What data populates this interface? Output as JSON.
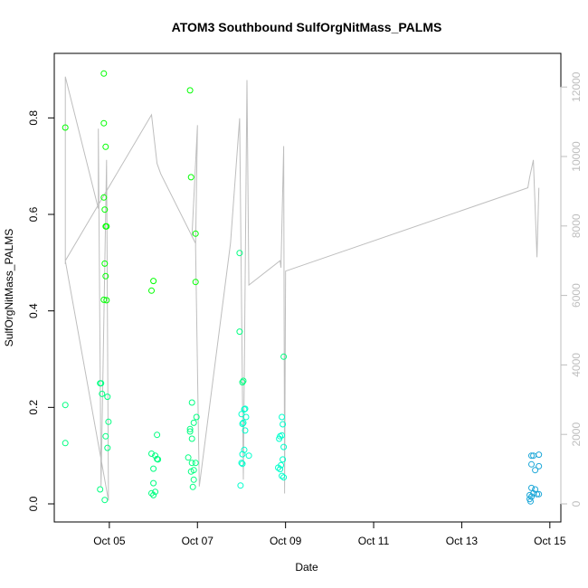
{
  "chart_data": {
    "type": "scatter",
    "title": "ATOM3 Southbound SulfOrgNitMass_PALMS",
    "xlabel": "Date",
    "ylabel": "SulfOrgNitMass_PALMS",
    "x_ticks": [
      "Oct 05",
      "Oct 07",
      "Oct 09",
      "Oct 11",
      "Oct 13",
      "Oct 15"
    ],
    "y_ticks": [
      "0.0",
      "0.2",
      "0.4",
      "0.6",
      "0.8"
    ],
    "y2_ticks": [
      "0",
      "2000",
      "4000",
      "6000",
      "8000",
      "10000",
      "12000"
    ],
    "xlim": [
      "2017-10-03T18:00",
      "2017-10-15T06:00"
    ],
    "ylim": [
      0,
      0.9
    ],
    "y2lim": [
      0,
      12500
    ],
    "colors": {
      "axis": "#000000",
      "altitude_line": "#bebebe",
      "altitude_axis_text": "#bebebe",
      "series_palette": [
        "#00ff00",
        "#00ff80",
        "#00ffcc",
        "#1ca7d8"
      ]
    },
    "series": [
      {
        "marker": "open-circle",
        "points": [
          [
            "2017-10-04T00:00",
            0.78
          ],
          [
            "2017-10-04T00:00",
            0.205
          ],
          [
            "2017-10-04T00:00",
            0.126
          ],
          [
            "2017-10-04T19:00",
            0.25
          ],
          [
            "2017-10-04T19:30",
            0.25
          ],
          [
            "2017-10-04T20:00",
            0.228
          ],
          [
            "2017-10-04T19:00",
            0.03
          ],
          [
            "2017-10-04T21:00",
            0.892
          ],
          [
            "2017-10-04T21:00",
            0.789
          ],
          [
            "2017-10-04T22:00",
            0.74
          ],
          [
            "2017-10-04T21:00",
            0.635
          ],
          [
            "2017-10-04T21:30",
            0.61
          ],
          [
            "2017-10-04T22:00",
            0.575
          ],
          [
            "2017-10-04T22:30",
            0.575
          ],
          [
            "2017-10-04T21:30",
            0.498
          ],
          [
            "2017-10-04T22:00",
            0.472
          ],
          [
            "2017-10-04T21:00",
            0.423
          ],
          [
            "2017-10-04T22:30",
            0.422
          ],
          [
            "2017-10-04T23:00",
            0.222
          ],
          [
            "2017-10-04T23:30",
            0.17
          ],
          [
            "2017-10-04T22:00",
            0.14
          ],
          [
            "2017-10-04T23:00",
            0.116
          ],
          [
            "2017-10-04T21:30",
            0.008
          ],
          [
            "2017-10-06T00:00",
            0.462
          ],
          [
            "2017-10-05T23:00",
            0.442
          ],
          [
            "2017-10-06T02:00",
            0.143
          ],
          [
            "2017-10-05T23:00",
            0.104
          ],
          [
            "2017-10-06T01:00",
            0.1
          ],
          [
            "2017-10-06T02:00",
            0.093
          ],
          [
            "2017-10-06T02:30",
            0.092
          ],
          [
            "2017-10-06T00:00",
            0.073
          ],
          [
            "2017-10-06T00:00",
            0.043
          ],
          [
            "2017-10-05T23:00",
            0.022
          ],
          [
            "2017-10-06T00:00",
            0.018
          ],
          [
            "2017-10-06T01:00",
            0.025
          ],
          [
            "2017-10-06T20:00",
            0.857
          ],
          [
            "2017-10-06T20:30",
            0.677
          ],
          [
            "2017-10-06T23:00",
            0.56
          ],
          [
            "2017-10-06T23:00",
            0.46
          ],
          [
            "2017-10-06T21:00",
            0.21
          ],
          [
            "2017-10-06T23:30",
            0.18
          ],
          [
            "2017-10-06T22:00",
            0.168
          ],
          [
            "2017-10-06T20:00",
            0.155
          ],
          [
            "2017-10-06T20:00",
            0.15
          ],
          [
            "2017-10-06T21:00",
            0.135
          ],
          [
            "2017-10-06T19:00",
            0.096
          ],
          [
            "2017-10-06T21:00",
            0.085
          ],
          [
            "2017-10-06T23:00",
            0.085
          ],
          [
            "2017-10-06T22:00",
            0.07
          ],
          [
            "2017-10-06T20:30",
            0.067
          ],
          [
            "2017-10-06T22:00",
            0.05
          ],
          [
            "2017-10-06T21:30",
            0.035
          ]
        ]
      },
      {
        "marker": "open-circle",
        "points": [
          [
            "2017-10-07T23:00",
            0.52
          ],
          [
            "2017-10-07T23:00",
            0.357
          ],
          [
            "2017-10-08T01:00",
            0.255
          ],
          [
            "2017-10-08T00:30",
            0.252
          ],
          [
            "2017-10-08T02:00",
            0.197
          ],
          [
            "2017-10-08T01:30",
            0.196
          ],
          [
            "2017-10-08T00:00",
            0.186
          ],
          [
            "2017-10-08T02:30",
            0.18
          ],
          [
            "2017-10-08T01:00",
            0.168
          ],
          [
            "2017-10-08T00:30",
            0.166
          ],
          [
            "2017-10-08T02:00",
            0.152
          ],
          [
            "2017-10-08T01:30",
            0.112
          ],
          [
            "2017-10-08T00:30",
            0.103
          ],
          [
            "2017-10-08T04:00",
            0.1
          ],
          [
            "2017-10-08T00:00",
            0.085
          ],
          [
            "2017-10-08T00:30",
            0.083
          ],
          [
            "2017-10-07T23:30",
            0.038
          ],
          [
            "2017-10-08T23:00",
            0.305
          ],
          [
            "2017-10-08T22:00",
            0.18
          ],
          [
            "2017-10-08T22:30",
            0.165
          ],
          [
            "2017-10-08T21:00",
            0.14
          ],
          [
            "2017-10-08T22:00",
            0.142
          ],
          [
            "2017-10-08T20:30",
            0.135
          ],
          [
            "2017-10-08T23:00",
            0.118
          ],
          [
            "2017-10-08T22:30",
            0.092
          ],
          [
            "2017-10-08T20:00",
            0.075
          ],
          [
            "2017-10-08T21:00",
            0.072
          ],
          [
            "2017-10-08T21:30",
            0.08
          ],
          [
            "2017-10-08T22:00",
            0.058
          ],
          [
            "2017-10-08T23:00",
            0.055
          ]
        ]
      },
      {
        "marker": "open-circle",
        "points": [
          [
            "2017-10-14T14:00",
            0.1
          ],
          [
            "2017-10-14T15:00",
            0.1
          ],
          [
            "2017-10-14T18:00",
            0.102
          ],
          [
            "2017-10-14T14:00",
            0.082
          ],
          [
            "2017-10-14T18:00",
            0.078
          ],
          [
            "2017-10-14T16:00",
            0.07
          ],
          [
            "2017-10-14T14:00",
            0.033
          ],
          [
            "2017-10-14T16:00",
            0.03
          ],
          [
            "2017-10-14T13:00",
            0.018
          ],
          [
            "2017-10-14T15:00",
            0.022
          ],
          [
            "2017-10-14T18:00",
            0.02
          ],
          [
            "2017-10-14T17:00",
            0.02
          ],
          [
            "2017-10-14T13:00",
            0.01
          ],
          [
            "2017-10-14T14:00",
            0.015
          ],
          [
            "2017-10-14T13:30",
            0.005
          ]
        ]
      }
    ],
    "altitude_line": {
      "axis": "right",
      "points": [
        [
          "2017-10-04T00:00",
          6900
        ],
        [
          "2017-10-04T00:00",
          12300
        ],
        [
          "2017-10-04T18:00",
          8500
        ],
        [
          "2017-10-04T18:00",
          10800
        ],
        [
          "2017-10-04T19:30",
          500
        ],
        [
          "2017-10-04T22:30",
          9900
        ],
        [
          "2017-10-04T23:30",
          100
        ],
        [
          "2017-10-04T00:00",
          7000
        ],
        [
          "2017-10-05T23:00",
          11200
        ],
        [
          "2017-10-06T02:00",
          9800
        ],
        [
          "2017-10-06T04:00",
          9500
        ],
        [
          "2017-10-06T23:00",
          7500
        ],
        [
          "2017-10-06T21:00",
          7700
        ],
        [
          "2017-10-07T00:00",
          10900
        ],
        [
          "2017-10-06T23:00",
          7400
        ],
        [
          "2017-10-07T01:00",
          500
        ],
        [
          "2017-10-07T18:00",
          7500
        ],
        [
          "2017-10-07T23:00",
          11100
        ],
        [
          "2017-10-08T01:00",
          700
        ],
        [
          "2017-10-08T03:00",
          12200
        ],
        [
          "2017-10-08T04:00",
          6300
        ],
        [
          "2017-10-08T21:00",
          7000
        ],
        [
          "2017-10-08T21:30",
          6800
        ],
        [
          "2017-10-08T23:00",
          10300
        ],
        [
          "2017-10-08T23:30",
          300
        ],
        [
          "2017-10-09T00:00",
          6700
        ],
        [
          "2017-10-14T12:00",
          9100
        ],
        [
          "2017-10-14T13:00",
          9400
        ],
        [
          "2017-10-14T15:00",
          9900
        ],
        [
          "2017-10-14T17:00",
          7100
        ],
        [
          "2017-10-14T18:00",
          9100
        ]
      ]
    }
  }
}
